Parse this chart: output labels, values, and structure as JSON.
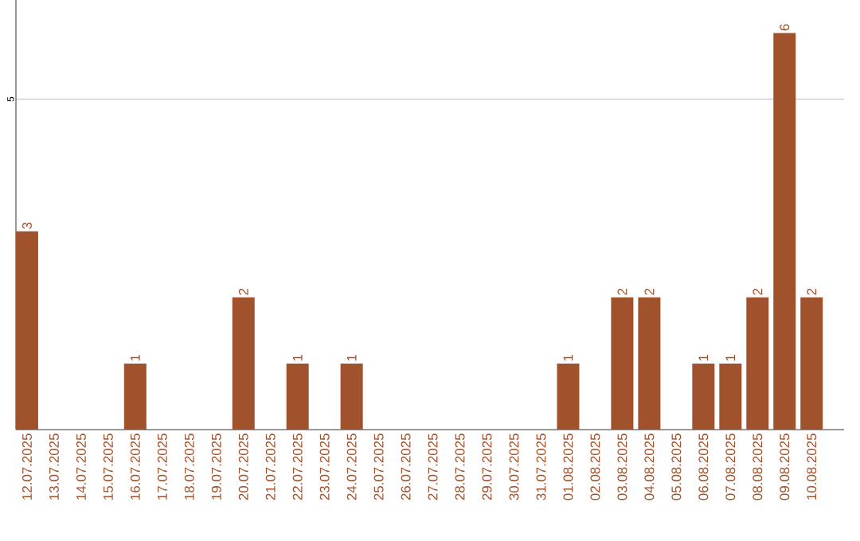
{
  "chart_data": {
    "type": "bar",
    "categories": [
      "12.07.2025",
      "13.07.2025",
      "14.07.2025",
      "15.07.2025",
      "16.07.2025",
      "17.07.2025",
      "18.07.2025",
      "19.07.2025",
      "20.07.2025",
      "21.07.2025",
      "22.07.2025",
      "23.07.2025",
      "24.07.2025",
      "25.07.2025",
      "26.07.2025",
      "27.07.2025",
      "28.07.2025",
      "29.07.2025",
      "30.07.2025",
      "31.07.2025",
      "01.08.2025",
      "02.08.2025",
      "03.08.2025",
      "04.08.2025",
      "05.08.2025",
      "06.08.2025",
      "07.08.2025",
      "08.08.2025",
      "09.08.2025",
      "10.08.2025"
    ],
    "values": [
      3,
      0,
      0,
      0,
      1,
      0,
      0,
      0,
      2,
      0,
      1,
      0,
      1,
      0,
      0,
      0,
      0,
      0,
      0,
      0,
      1,
      0,
      2,
      2,
      0,
      1,
      1,
      2,
      6,
      2
    ],
    "value_labels": [
      "3",
      null,
      null,
      null,
      "1",
      null,
      null,
      null,
      "2",
      null,
      "1",
      null,
      "1",
      null,
      null,
      null,
      null,
      null,
      null,
      null,
      "1",
      null,
      "2",
      "2",
      null,
      "1",
      "1",
      "2",
      "6",
      "2"
    ],
    "color": "#a0522d",
    "ylim": [
      0,
      6.5
    ],
    "yticks": [
      5
    ],
    "grid": "y"
  }
}
